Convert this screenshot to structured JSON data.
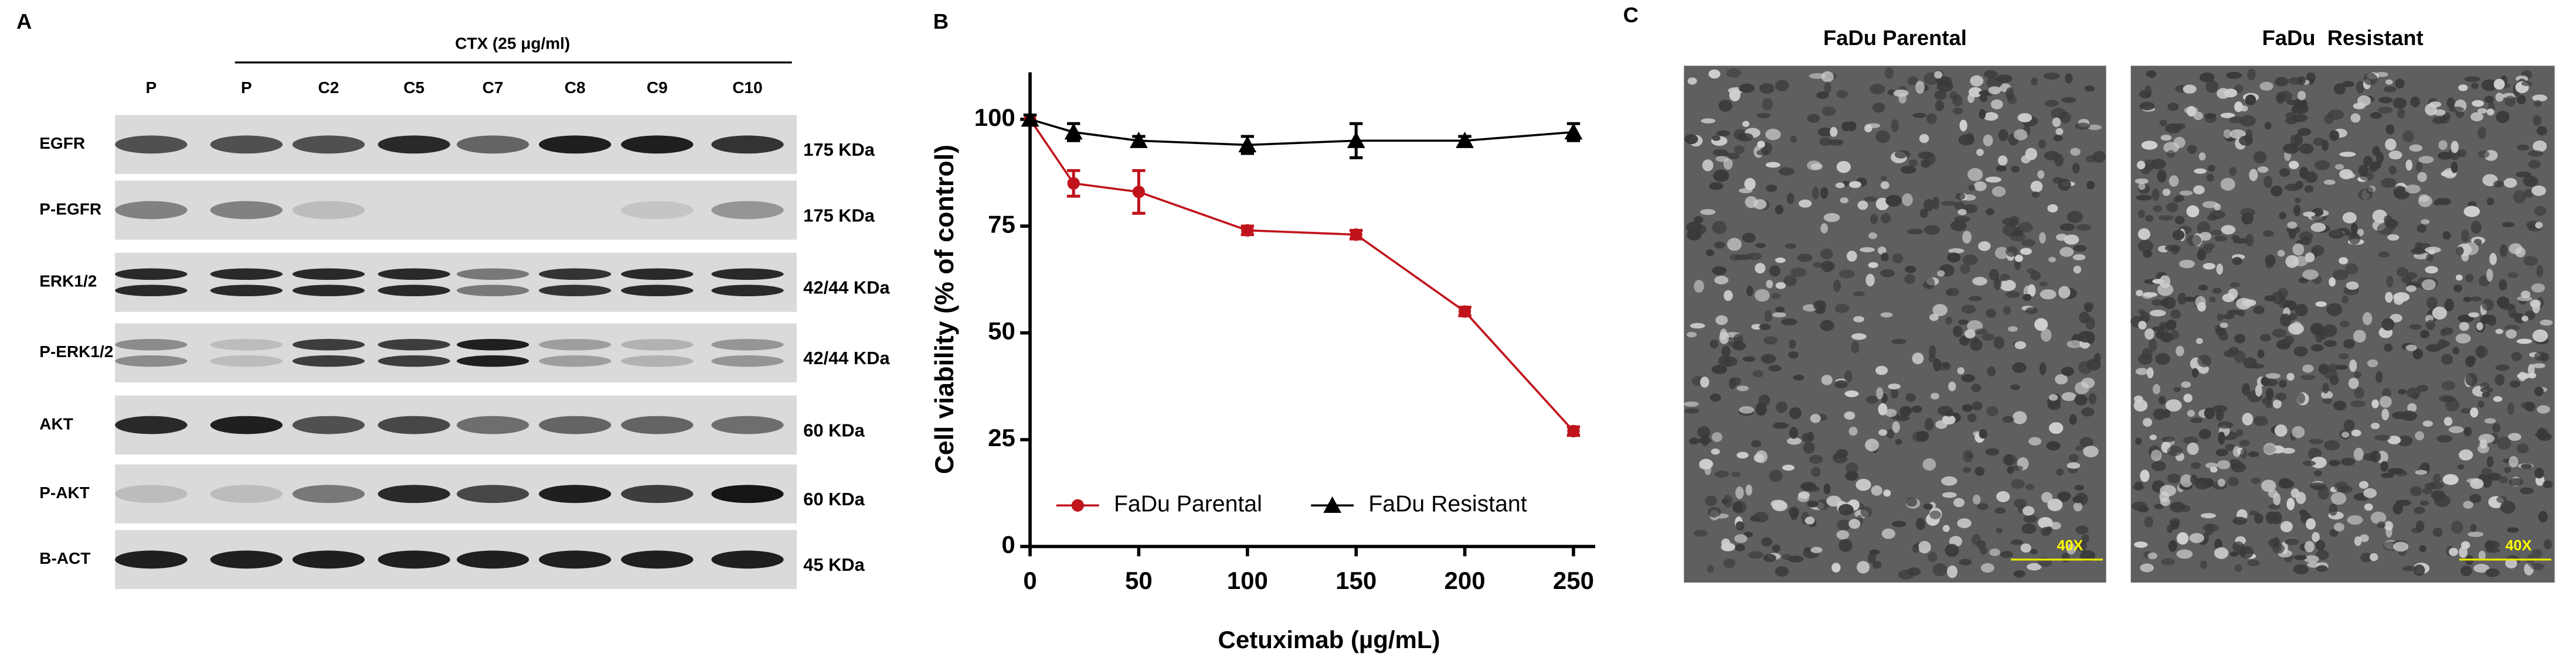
{
  "panel_a": {
    "letter": "A",
    "treatment": "CTX (25 μg/ml)",
    "lanes": [
      "P",
      "P",
      "C2",
      "C5",
      "C7",
      "C8",
      "C9",
      "C10"
    ],
    "rows": [
      {
        "label": "EGFR",
        "size": "175 KDa"
      },
      {
        "label": "P-EGFR",
        "size": "175 KDa"
      },
      {
        "label": "ERK1/2",
        "size": "42/44 KDa"
      },
      {
        "label": "P-ERK1/2",
        "size": "42/44 KDa"
      },
      {
        "label": "AKT",
        "size": "60 KDa"
      },
      {
        "label": "P-AKT",
        "size": "60 KDa"
      },
      {
        "label": "B-ACT",
        "size": "45 KDa"
      }
    ]
  },
  "chart_data": {
    "type": "line",
    "panel_letter": "B",
    "x_label": "Cetuximab (µg/mL)",
    "y_label": "Cell viability (% of control)",
    "x": [
      0,
      20,
      50,
      100,
      150,
      200,
      250
    ],
    "series": [
      {
        "name": "FaDu Parental",
        "color": "#c0141c",
        "marker": "circle",
        "values": [
          100,
          85,
          83,
          74,
          73,
          55,
          27
        ],
        "errors": [
          1,
          3,
          5,
          1,
          1,
          1,
          1
        ]
      },
      {
        "name": "FaDu Resistant",
        "color": "#000000",
        "marker": "triangle",
        "values": [
          100,
          97,
          95,
          94,
          95,
          95,
          97
        ],
        "errors": [
          1,
          2,
          1,
          2,
          4,
          1,
          2
        ]
      }
    ],
    "xlim": [
      0,
      260
    ],
    "ylim": [
      0,
      111
    ],
    "xticks": [
      0,
      50,
      100,
      150,
      200,
      250
    ],
    "yticks": [
      0,
      25,
      50,
      75,
      100
    ],
    "legend": "bottom"
  },
  "panel_c": {
    "letter": "C",
    "images": [
      {
        "title": "FaDu Parental",
        "magnification": "40X"
      },
      {
        "title": "FaDu  Resistant",
        "magnification": "40X"
      }
    ]
  }
}
